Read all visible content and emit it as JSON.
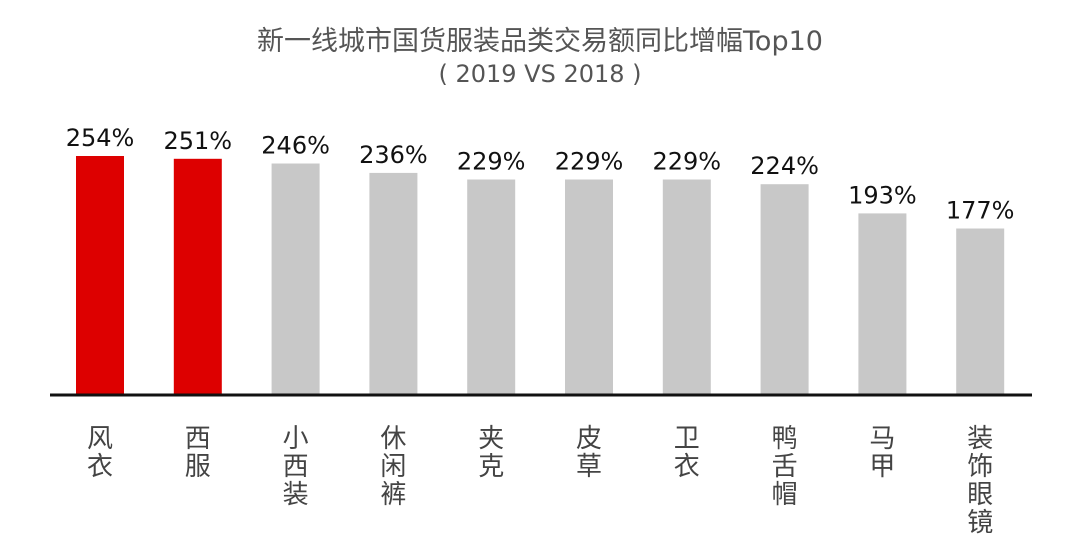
{
  "chart_data": {
    "type": "bar",
    "title": "新一线城市国货服装品类交易额同比增幅Top10",
    "subtitle": "( 2019 VS 2018 )",
    "categories": [
      "风衣",
      "西服",
      "小西装",
      "休闲裤",
      "夹克",
      "皮草",
      "卫衣",
      "鸭舌帽",
      "马甲",
      "装饰眼镜"
    ],
    "values": [
      254,
      251,
      246,
      236,
      229,
      229,
      229,
      224,
      193,
      177
    ],
    "value_labels": [
      "254%",
      "251%",
      "246%",
      "236%",
      "229%",
      "229%",
      "229%",
      "224%",
      "193%",
      "177%"
    ],
    "unit": "%",
    "ylim": [
      0,
      254
    ],
    "grid": false,
    "legend": "none",
    "colors": {
      "highlight": "#dd0000",
      "default": "#c8c8c8",
      "axis": "#111111"
    },
    "highlight_indices": [
      0,
      1
    ]
  }
}
